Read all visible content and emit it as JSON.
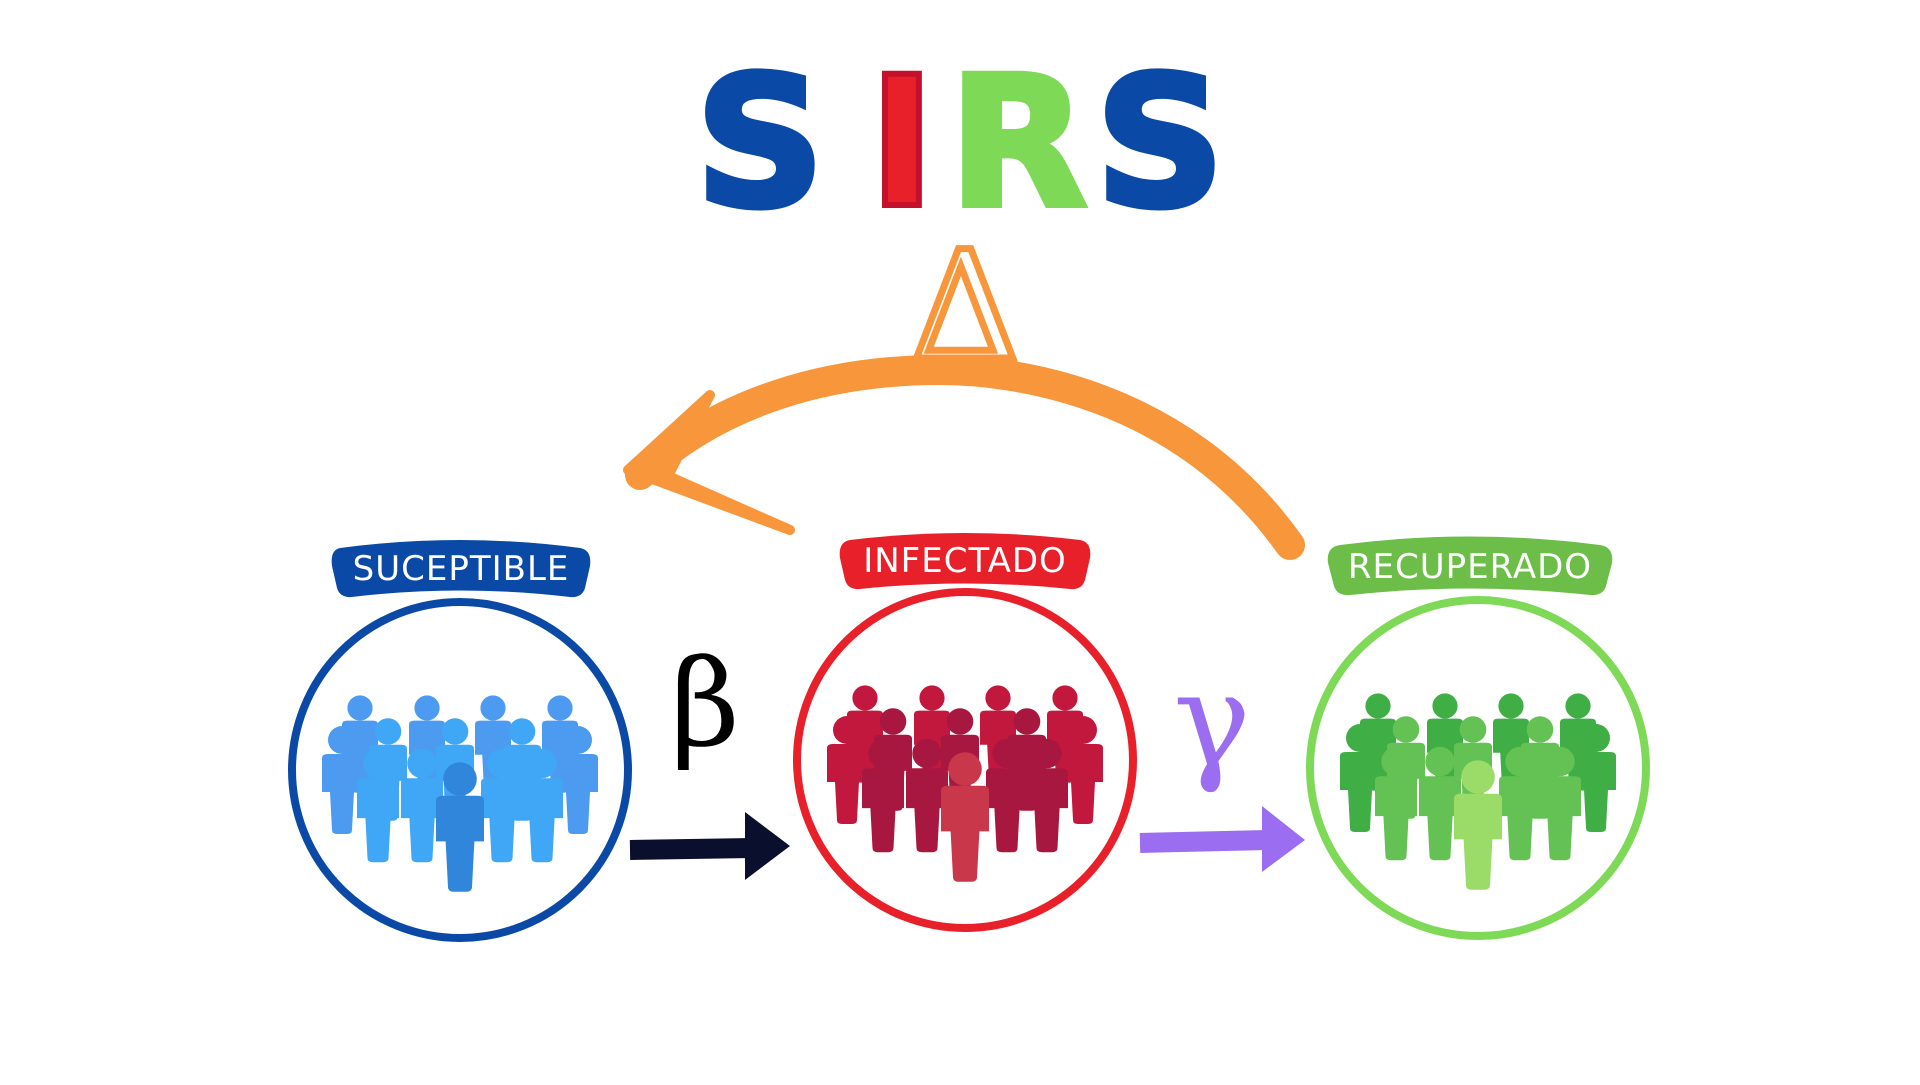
{
  "title": {
    "letters": [
      {
        "char": "S",
        "color": "#0A4AA6"
      },
      {
        "char": "I",
        "color": "#E8202A"
      },
      {
        "char": "R",
        "color": "#7ED957"
      },
      {
        "char": "S",
        "color": "#0A4AA6"
      }
    ]
  },
  "loss_of_immunity": {
    "symbol": "Δ",
    "color": "#F7963B"
  },
  "compartments": {
    "susceptible": {
      "label": "SUCEPTIBLE",
      "ring_color": "#0A4AA6",
      "banner_color": "#0A4AA6",
      "people_colors": [
        "#4C9BF0",
        "#3FA7F5",
        "#2F86DB"
      ]
    },
    "infected": {
      "label": "INFECTADO",
      "ring_color": "#E8202A",
      "banner_color": "#E8202A",
      "people_colors": [
        "#C2183E",
        "#A8173F",
        "#C9374A"
      ]
    },
    "recovered": {
      "label": "RECUPERADO",
      "ring_color": "#7ED957",
      "banner_color": "#6DBE48",
      "people_colors": [
        "#3FAE45",
        "#64C255",
        "#9BDB68"
      ]
    }
  },
  "transitions": {
    "infection": {
      "symbol": "β",
      "color": "#0B0F2E",
      "symbol_color": "#000000"
    },
    "recovery": {
      "symbol": "γ",
      "color": "#9B6DF0",
      "symbol_color": "#9B6DF0"
    }
  }
}
